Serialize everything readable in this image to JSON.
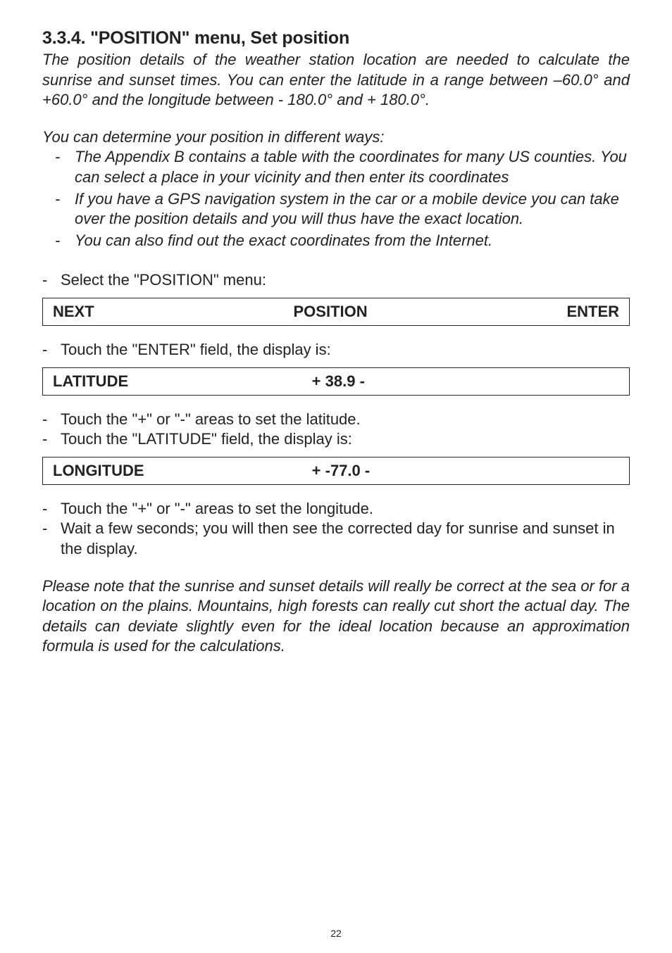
{
  "heading": "3.3.4. \"POSITION\" menu, Set position",
  "intro": "The position details of the weather station location are needed to calculate the sunrise and sunset times. You can enter the latitude in a range between –60.0° and +60.0° and the longitude between - 180.0° and + 180.0°.",
  "ways_intro": "You can determine your position in different ways:",
  "ways": [
    "The Appendix B contains a table with the coordinates for many US counties. You can select a place in your vicinity and then enter its coordinates",
    "If you have a GPS navigation system in the car or a mobile device you can take over the position details and you will thus have the exact location.",
    "You can also find out the exact coordinates from the Internet."
  ],
  "step_select_menu": "Select the \"POSITION\" menu:",
  "display1": {
    "left": "NEXT",
    "center": "POSITION",
    "right": "ENTER"
  },
  "step_touch_enter": "Touch the \"ENTER\" field, the display is:",
  "display2": {
    "label": "LATITUDE",
    "value": "+ 38.9 -"
  },
  "step_lat_plusminus": "Touch the \"+\" or \"-\" areas to set the latitude.",
  "step_touch_latitude": "Touch the \"LATITUDE\" field, the display is:",
  "display3": {
    "label": "LONGITUDE",
    "value": "+ -77.0 -"
  },
  "step_lon_plusminus": "Touch the \"+\" or \"-\" areas to set the longitude.",
  "step_wait": "Wait a few seconds; you will then see the corrected day for sunrise and sunset in the display.",
  "note": "Please note that the sunrise and sunset details will really be correct at the sea or for a location on the plains. Mountains, high forests can really cut short the actual day. The details can deviate slightly even for the ideal location because an approximation formula is used for the calculations.",
  "page_number": "22",
  "colors": {
    "text": "#222222",
    "background": "#ffffff",
    "border": "#222222"
  },
  "typography": {
    "heading_fontsize": 25,
    "body_fontsize": 22,
    "page_number_fontsize": 14
  }
}
